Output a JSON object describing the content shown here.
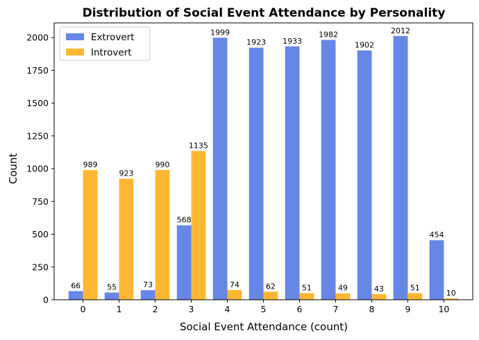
{
  "chart_data": {
    "type": "bar",
    "title": "Distribution of Social Event Attendance by Personality",
    "xlabel": "Social Event Attendance (count)",
    "ylabel": "Count",
    "categories": [
      "0",
      "1",
      "2",
      "3",
      "4",
      "5",
      "6",
      "7",
      "8",
      "9",
      "10"
    ],
    "series": [
      {
        "name": "Extrovert",
        "color": "#6687e6",
        "values": [
          66,
          55,
          73,
          568,
          1999,
          1923,
          1933,
          1982,
          1902,
          2012,
          454
        ]
      },
      {
        "name": "Introvert",
        "color": "#ffb733",
        "values": [
          989,
          923,
          990,
          1135,
          74,
          62,
          51,
          49,
          43,
          51,
          10
        ]
      }
    ],
    "ylim": [
      0,
      2112
    ],
    "yticks": [
      0,
      250,
      500,
      750,
      1000,
      1250,
      1500,
      1750,
      2000
    ],
    "grid": false,
    "legend_position": "top-left",
    "data_labels": true
  }
}
